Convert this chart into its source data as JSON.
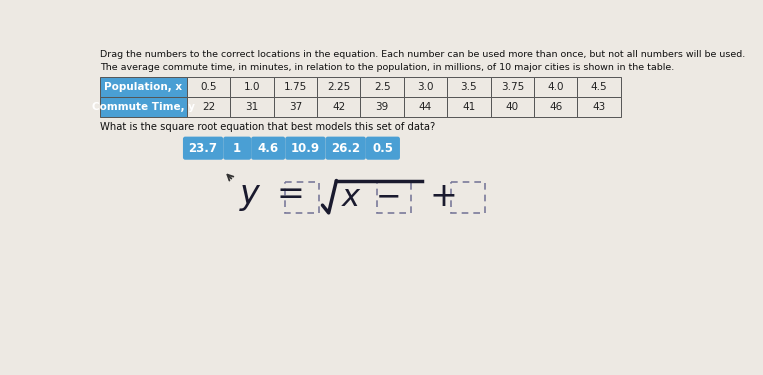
{
  "title_line1": "Drag the numbers to the correct locations in the equation. Each number can be used more than once, but not all numbers will be used.",
  "title_line2": "The average commute time, in minutes, in relation to the population, in millions, of 10 major cities is shown in the table.",
  "question": "What is the square root equation that best models this set of data?",
  "table_headers": [
    "Population, x",
    "0.5",
    "1.0",
    "1.75",
    "2.25",
    "2.5",
    "3.0",
    "3.5",
    "3.75",
    "4.0",
    "4.5"
  ],
  "table_row2": [
    "Commute Time, y",
    "22",
    "31",
    "37",
    "42",
    "39",
    "44",
    "41",
    "40",
    "46",
    "43"
  ],
  "number_tiles": [
    "23.7",
    "1",
    "4.6",
    "10.9",
    "26.2",
    "0.5"
  ],
  "tile_color": "#4a9fd4",
  "tile_text_color": "#ffffff",
  "header_bg": "#4a9fd4",
  "header_text": "#ffffff",
  "bg_color": "#ede9e3",
  "box_border_color": "#7a7a9a",
  "table_border": "#555555"
}
